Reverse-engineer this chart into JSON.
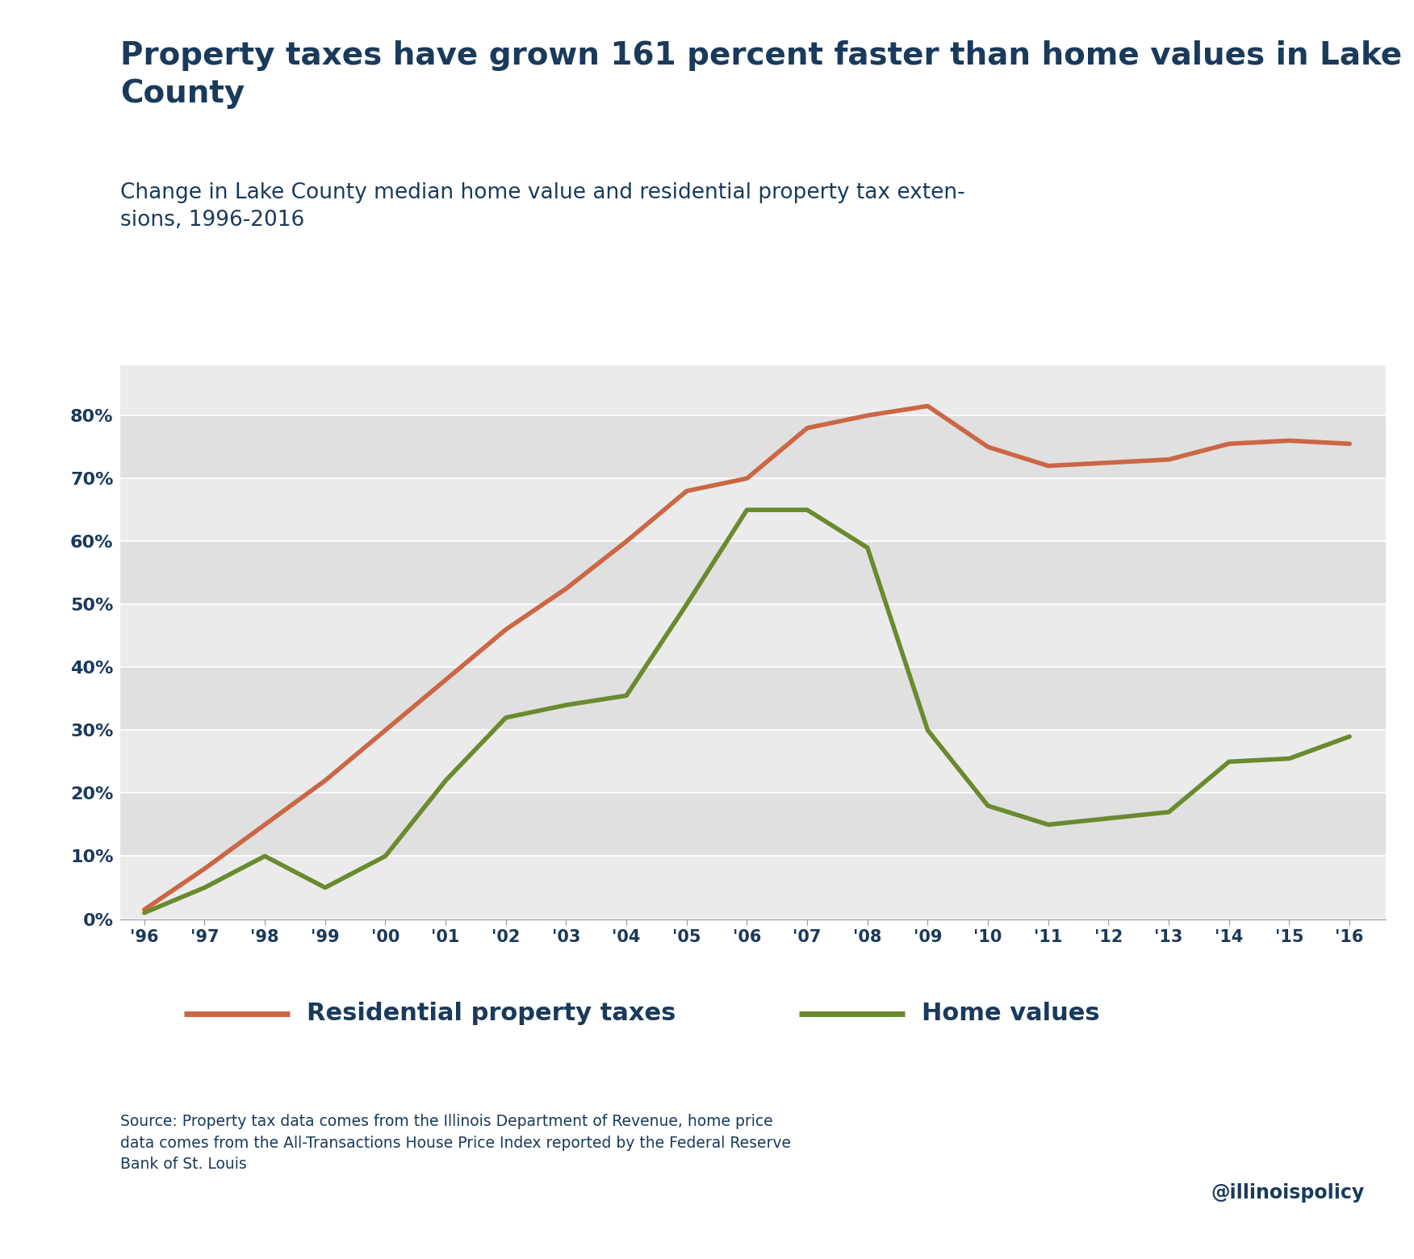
{
  "title": "Property taxes have grown 161 percent faster than home values in Lake\nCounty",
  "subtitle": "Change in Lake County median home value and residential property tax exten-\nsions, 1996-2016",
  "title_color": "#1a3a5c",
  "subtitle_color": "#1a3a5c",
  "title_fontsize": 28,
  "subtitle_fontsize": 19,
  "pt_years": [
    1996,
    1997,
    1998,
    1999,
    2000,
    2001,
    2002,
    2003,
    2004,
    2005,
    2006,
    2007,
    2008,
    2009,
    2010,
    2011,
    2012,
    2013,
    2014,
    2015,
    2016
  ],
  "pt_vals": [
    1.5,
    8.0,
    15.0,
    22.0,
    30.0,
    38.0,
    46.0,
    52.5,
    60.0,
    68.0,
    70.0,
    78.0,
    80.0,
    81.5,
    75.0,
    72.0,
    72.5,
    73.0,
    75.5,
    76.0,
    75.5
  ],
  "hv_years": [
    1996,
    1997,
    1998,
    1999,
    2000,
    2001,
    2002,
    2003,
    2004,
    2005,
    2006,
    2007,
    2008,
    2009,
    2010,
    2011,
    2012,
    2013,
    2014,
    2015,
    2016
  ],
  "hv_vals": [
    1.0,
    5.0,
    10.0,
    5.0,
    10.0,
    22.0,
    32.0,
    34.0,
    35.5,
    50.0,
    65.0,
    65.0,
    59.0,
    30.0,
    18.0,
    15.0,
    16.0,
    17.0,
    25.0,
    25.5,
    29.0
  ],
  "property_tax_color": "#cc6644",
  "home_value_color": "#6a8a2e",
  "background_color": "#ffffff",
  "plot_bg_light": "#ebebeb",
  "plot_bg_dark": "#d8d8d8",
  "grid_line_color": "#ffffff",
  "tick_color": "#1a3a5c",
  "yticks": [
    0,
    10,
    20,
    30,
    40,
    50,
    60,
    70,
    80
  ],
  "source_text": "Source: Property tax data comes from the Illinois Department of Revenue, home price\ndata comes from the All-Transactions House Price Index reported by the Federal Reserve\nBank of St. Louis",
  "watermark": "@illinoispolicy",
  "legend_label_taxes": "Residential property taxes",
  "legend_label_home": "Home values",
  "linewidth": 4.0
}
